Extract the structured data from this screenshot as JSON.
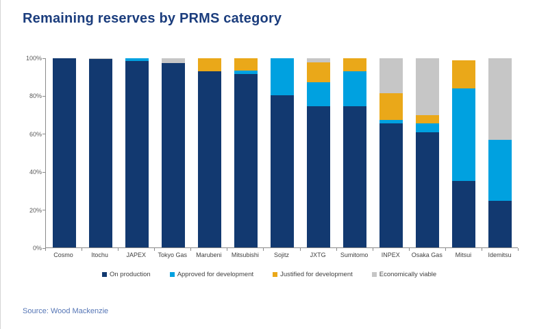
{
  "page": {
    "title": "Remaining reserves by PRMS category",
    "source": "Source: Wood Mackenzie"
  },
  "colors": {
    "title_text": "#1B3D7D",
    "source_text": "#5575B5",
    "axis_line": "#8A8A8A",
    "tick_label": "#595959",
    "category_label": "#3F3F3F"
  },
  "chart_data": {
    "type": "bar",
    "stacked": true,
    "orientation": "vertical",
    "unit": "%",
    "title": "Remaining reserves by PRMS category",
    "xlabel": "",
    "ylabel": "",
    "grid": false,
    "legend_position": "bottom",
    "y_axis": {
      "min": 0,
      "max": 100,
      "tick_values": [
        0,
        20,
        40,
        60,
        80,
        100
      ],
      "tick_labels": [
        "0%",
        "20%",
        "40%",
        "60%",
        "80%",
        "100%"
      ]
    },
    "categories": [
      "Cosmo",
      "Itochu",
      "JAPEX",
      "Tokyo Gas",
      "Marubeni",
      "Mitsubishi",
      "Sojitz",
      "JXTG",
      "Sumitomo",
      "INPEX",
      "Osaka Gas",
      "Mitsui",
      "Idemitsu"
    ],
    "series": [
      {
        "name": "On production",
        "color": "#123970",
        "values": [
          100,
          99.5,
          98.5,
          97.5,
          93,
          91.5,
          80.5,
          74.5,
          74.5,
          65.5,
          61,
          35,
          24.5
        ]
      },
      {
        "name": "Approved for development",
        "color": "#00A1E0",
        "values": [
          0,
          0,
          1.5,
          0,
          0,
          2,
          19.5,
          13,
          18.5,
          2,
          4.5,
          49,
          32.5
        ]
      },
      {
        "name": "Justified for development",
        "color": "#EAA819",
        "values": [
          0,
          0,
          0,
          0,
          7,
          6.5,
          0,
          10.5,
          7,
          14,
          4.5,
          15,
          0
        ]
      },
      {
        "name": "Economically viable",
        "color": "#C6C6C6",
        "values": [
          0,
          0.5,
          0,
          2.5,
          0,
          0,
          0,
          2,
          0,
          18.5,
          30,
          0,
          43
        ]
      }
    ]
  }
}
